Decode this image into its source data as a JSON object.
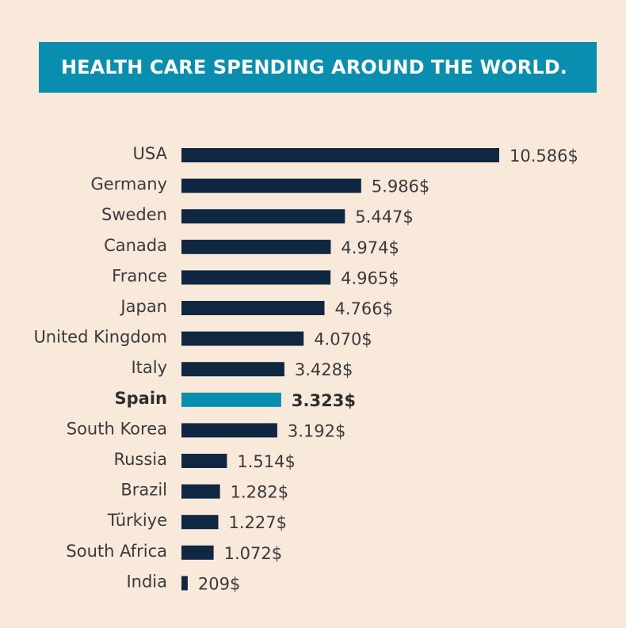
{
  "colors": {
    "background": "#f9e9db",
    "banner": "#0a8eaf",
    "bar": "#0f2741",
    "highlight_bar": "#0a8eaf",
    "text": "#3a3a3a"
  },
  "chart_data": {
    "type": "bar",
    "orientation": "horizontal",
    "title": "HEALTH CARE SPENDING AROUND THE WORLD.",
    "xlabel": "",
    "ylabel": "",
    "grid": false,
    "legend": "none",
    "xlim": [
      0,
      10586
    ],
    "categories": [
      "USA",
      "Germany",
      "Sweden",
      "Canada",
      "France",
      "Japan",
      "United Kingdom",
      "Italy",
      "Spain",
      "South Korea",
      "Russia",
      "Brazil",
      "Türkiye",
      "South Africa",
      "India"
    ],
    "values": [
      10586,
      5986,
      5447,
      4974,
      4965,
      4766,
      4070,
      3428,
      3323,
      3192,
      1514,
      1282,
      1227,
      1072,
      209
    ],
    "value_labels": [
      "10.586$",
      "5.986$",
      "5.447$",
      "4.974$",
      "4.965$",
      "4.766$",
      "4.070$",
      "3.428$",
      "3.323$",
      "3.192$",
      "1.514$",
      "1.282$",
      "1.227$",
      "1.072$",
      "209$"
    ],
    "highlighted_category": "Spain"
  }
}
